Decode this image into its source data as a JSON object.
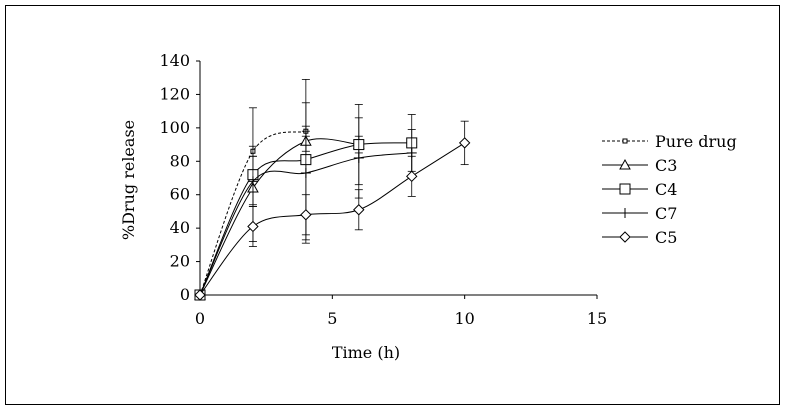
{
  "chart_data": {
    "type": "line",
    "title": "",
    "xlabel": "Time (h)",
    "ylabel": "%Drug release",
    "xlim": [
      0,
      15
    ],
    "ylim": [
      0,
      140
    ],
    "xticks": [
      0,
      5,
      10,
      15
    ],
    "yticks": [
      0,
      20,
      40,
      60,
      80,
      100,
      120,
      140
    ],
    "grid": false,
    "legend": "right",
    "series": [
      {
        "name": "Pure drug",
        "marker": "small-square",
        "line": "dashed",
        "x": [
          0,
          2,
          4
        ],
        "y": [
          0,
          86,
          98
        ],
        "err": [
          0,
          3,
          3
        ]
      },
      {
        "name": "C3",
        "marker": "triangle",
        "line": "solid",
        "x": [
          0,
          2,
          4,
          6
        ],
        "y": [
          0,
          64,
          92,
          90
        ],
        "err": [
          0,
          10,
          6,
          5
        ]
      },
      {
        "name": "C4",
        "marker": "square",
        "line": "solid",
        "x": [
          0,
          2,
          4,
          6,
          8
        ],
        "y": [
          0,
          72,
          81,
          90,
          91
        ],
        "err": [
          0,
          40,
          48,
          24,
          17
        ]
      },
      {
        "name": "C7",
        "marker": "plus",
        "line": "solid",
        "x": [
          0,
          2,
          4,
          6,
          8
        ],
        "y": [
          0,
          68,
          73,
          82,
          85
        ],
        "err": [
          0,
          15,
          42,
          24,
          14
        ]
      },
      {
        "name": "C5",
        "marker": "diamond",
        "line": "solid",
        "x": [
          0,
          2,
          4,
          6,
          8,
          10
        ],
        "y": [
          0,
          41,
          48,
          51,
          71,
          91
        ],
        "err": [
          0,
          12,
          12,
          12,
          12,
          13
        ]
      }
    ]
  }
}
